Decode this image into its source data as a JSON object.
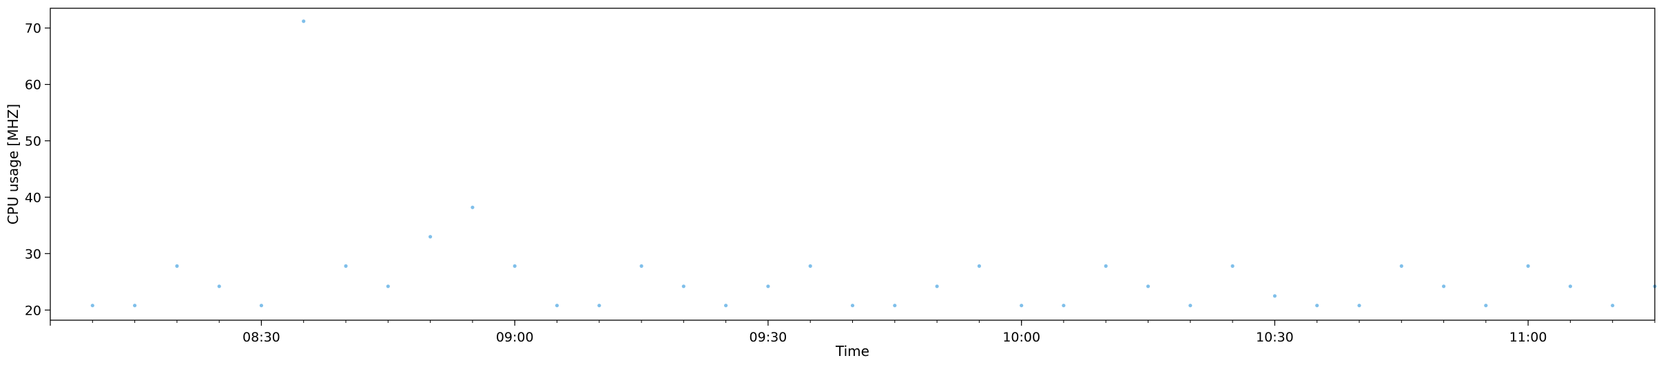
{
  "chart_data": {
    "type": "scatter",
    "title": "",
    "xlabel": "Time",
    "ylabel": "CPU usage [MHZ]",
    "xlim": [
      "08:05",
      "11:15"
    ],
    "ylim": [
      18.2,
      73.5
    ],
    "x_ticks": [
      "08:30",
      "09:00",
      "09:30",
      "10:00",
      "10:30",
      "11:00"
    ],
    "y_ticks": [
      20,
      30,
      40,
      50,
      60,
      70
    ],
    "grid": false,
    "marker_color": "#7fbfea",
    "series": [
      {
        "x": [
          "08:10",
          "08:15",
          "08:20",
          "08:25",
          "08:30",
          "08:35",
          "08:40",
          "08:45",
          "08:50",
          "08:55",
          "09:00",
          "09:05",
          "09:10",
          "09:15",
          "09:20",
          "09:25",
          "09:30",
          "09:35",
          "09:40",
          "09:45",
          "09:50",
          "09:55",
          "10:00",
          "10:05",
          "10:10",
          "10:15",
          "10:20",
          "10:25",
          "10:30",
          "10:35",
          "10:40",
          "10:45",
          "10:50",
          "10:55",
          "11:00",
          "11:05",
          "11:10",
          "11:15"
        ],
        "y": [
          20.8,
          20.8,
          27.8,
          24.2,
          20.8,
          71.2,
          27.8,
          24.2,
          33.0,
          38.2,
          27.8,
          20.8,
          20.8,
          27.8,
          24.2,
          20.8,
          24.2,
          27.8,
          20.8,
          20.8,
          24.2,
          27.8,
          20.8,
          20.8,
          27.8,
          24.2,
          20.8,
          27.8,
          22.5,
          20.8,
          20.8,
          27.8,
          24.2,
          20.8,
          27.8,
          24.2,
          20.8,
          24.2
        ]
      }
    ]
  }
}
